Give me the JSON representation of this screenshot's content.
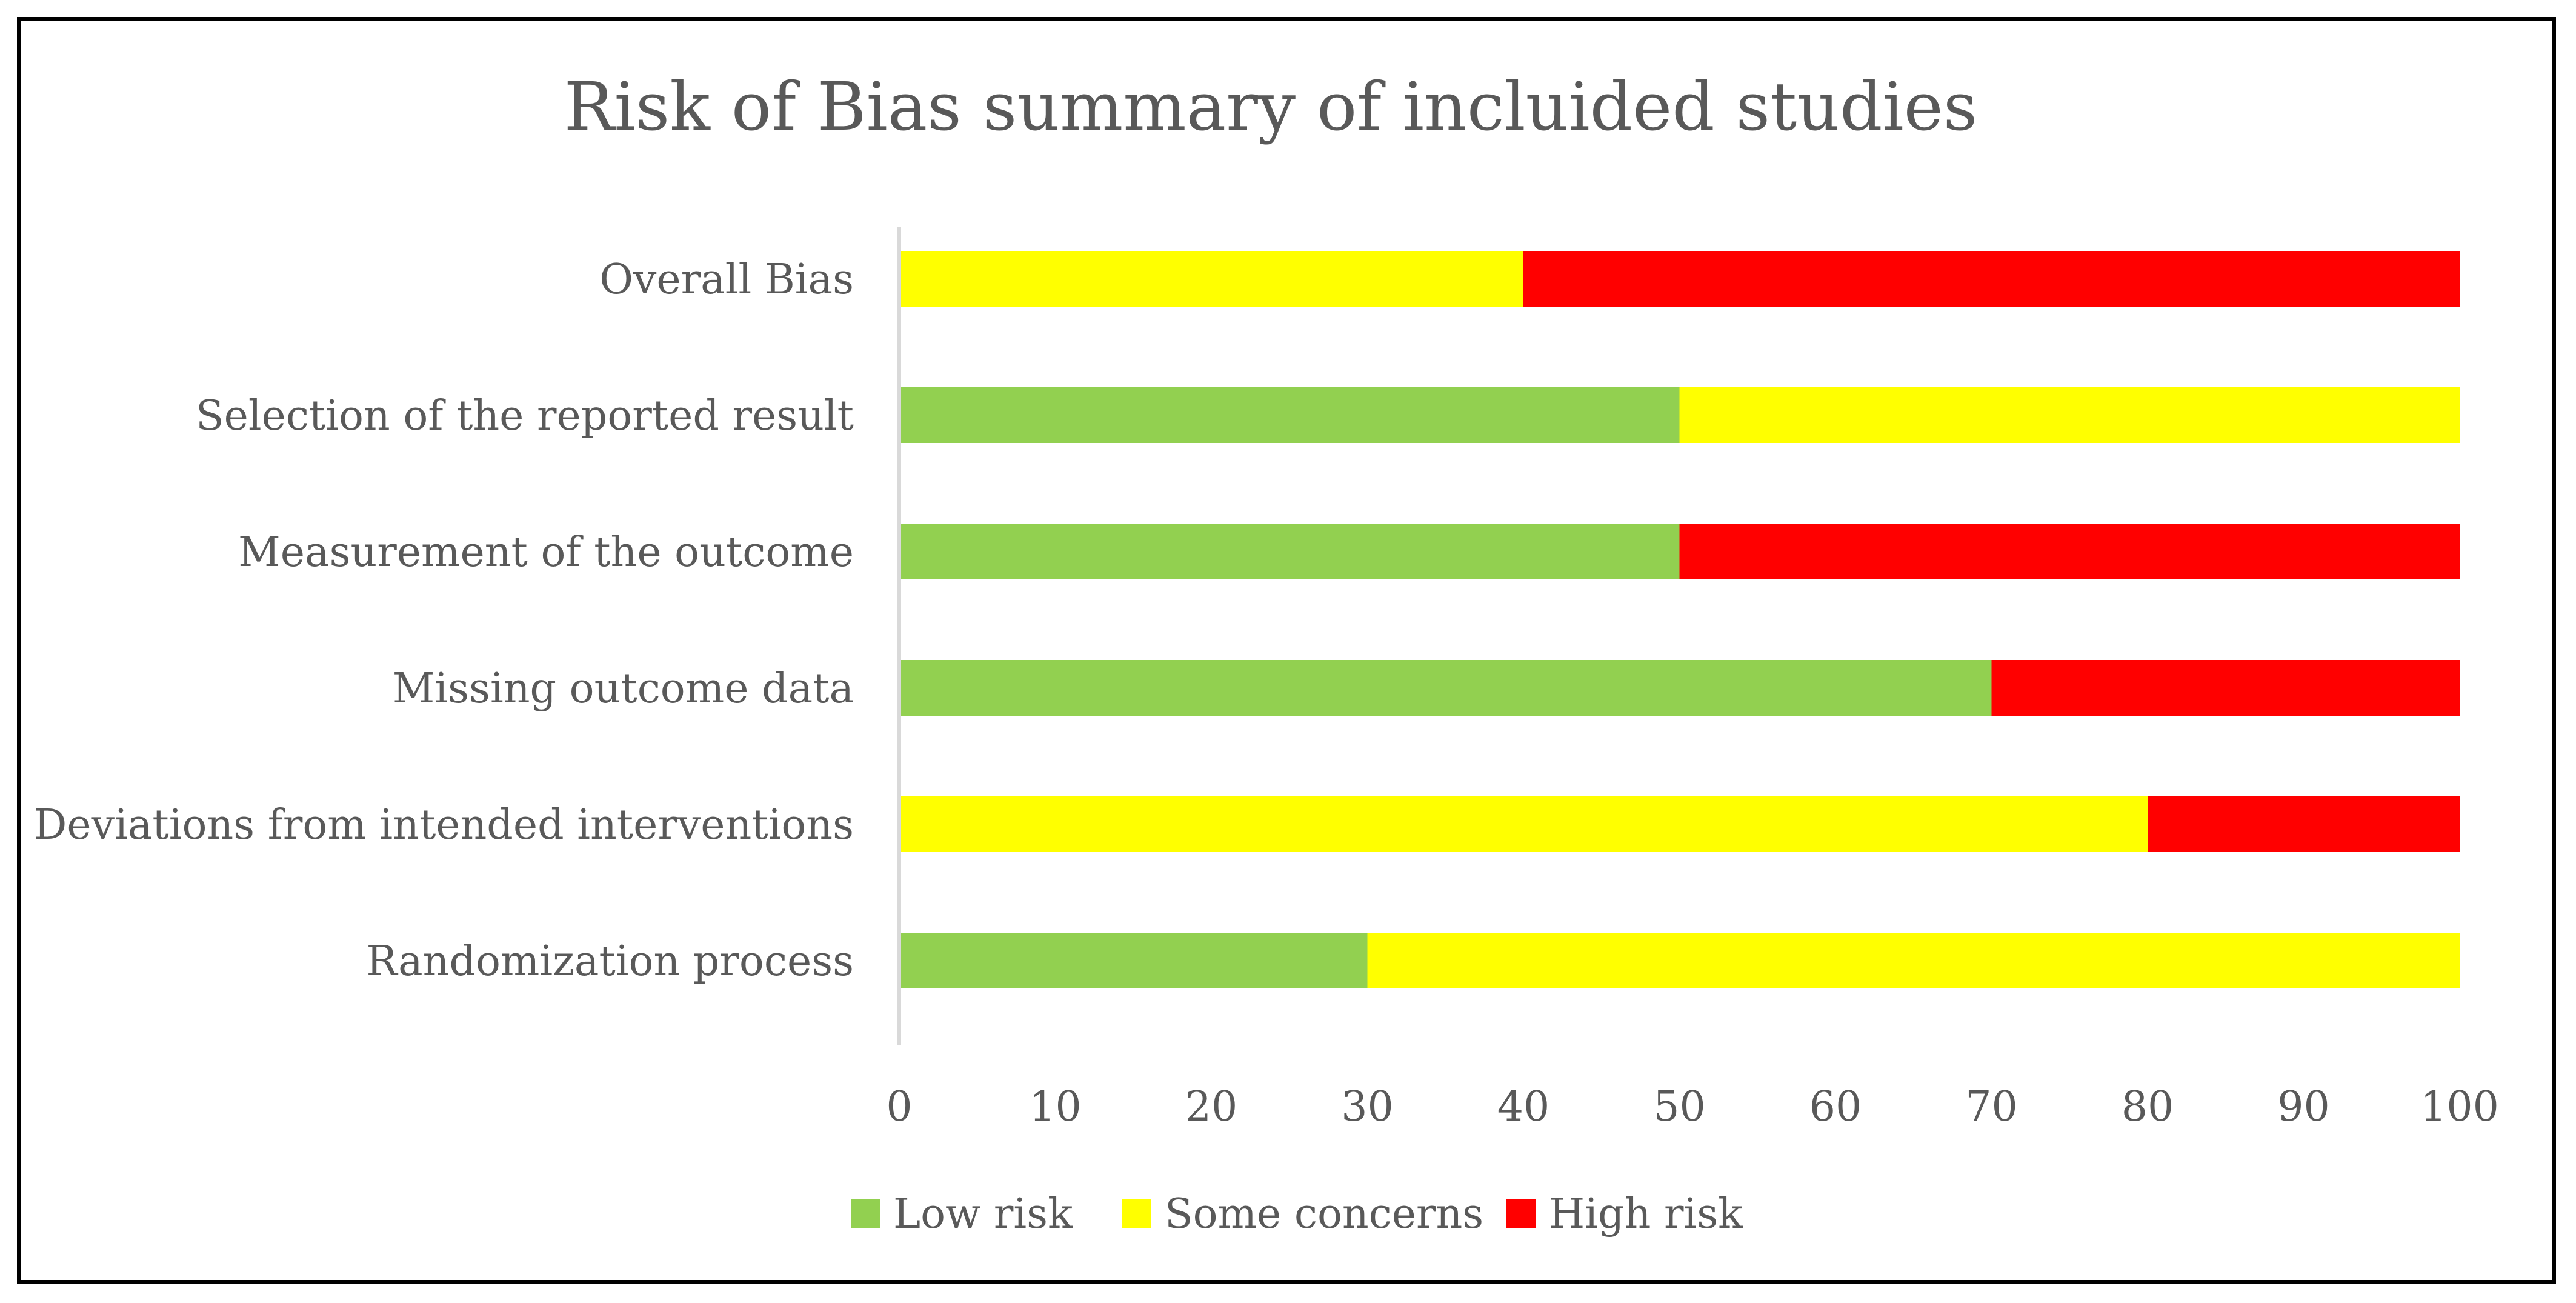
{
  "chart_data": {
    "type": "bar",
    "orientation": "horizontal",
    "stacked": true,
    "title": "Risk of Bias summary of incluided studies",
    "xlabel": "",
    "ylabel": "",
    "xlim": [
      0,
      100
    ],
    "x_ticks": [
      "0",
      "10",
      "20",
      "30",
      "40",
      "50",
      "60",
      "70",
      "80",
      "90",
      "100"
    ],
    "grid": false,
    "legend_position": "bottom",
    "categories": [
      "Overall Bias",
      "Selection of the reported result",
      "Measurement of the outcome",
      "Missing outcome data",
      "Deviations from intended interventions",
      "Randomization process"
    ],
    "series": [
      {
        "name": "Low risk",
        "color": "#92D050",
        "values": [
          0,
          50,
          50,
          70,
          0,
          30
        ]
      },
      {
        "name": "Some concerns",
        "color": "#FFFF00",
        "values": [
          40,
          50,
          0,
          0,
          80,
          70
        ]
      },
      {
        "name": "High risk",
        "color": "#FF0000",
        "values": [
          60,
          0,
          50,
          30,
          20,
          0
        ]
      }
    ],
    "colors": {
      "text": "#595959",
      "axis": "#D9D9D9",
      "frame": "#000000"
    }
  }
}
